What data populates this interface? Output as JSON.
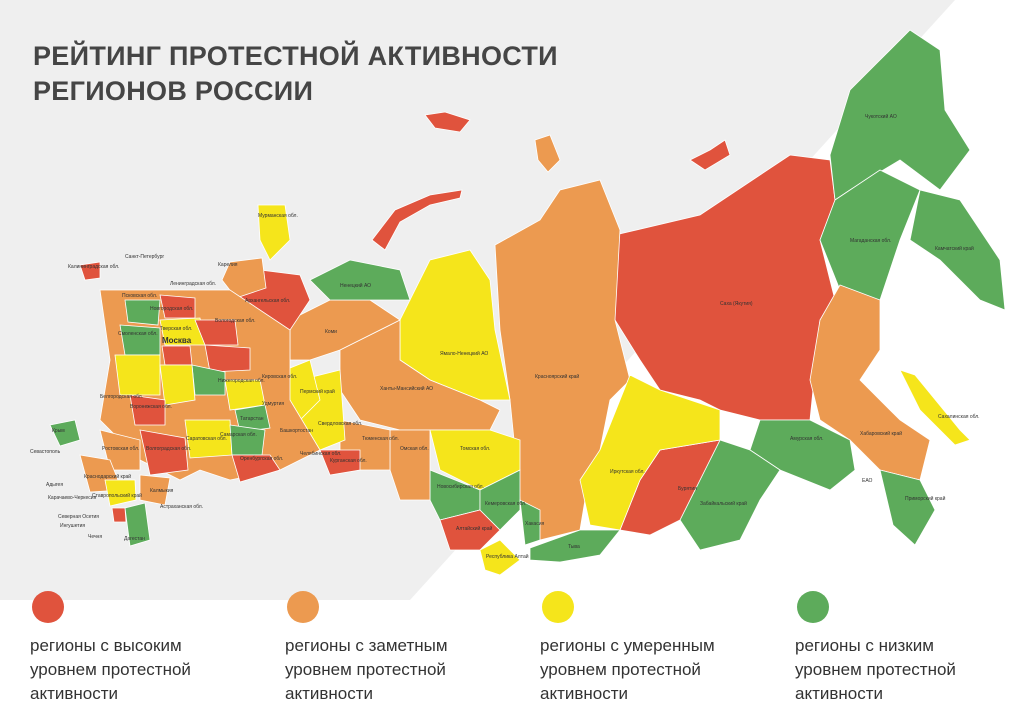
{
  "title": [
    "РЕЙТИНГ ПРОТЕСТНОЙ АКТИВНОСТИ",
    "РЕГИОНОВ РОССИИ"
  ],
  "legend": [
    {
      "color": "#e0533d",
      "lines": [
        "регионы с высоким",
        "уровнем протестной",
        "активности"
      ]
    },
    {
      "color": "#ec9a50",
      "lines": [
        "регионы с заметным",
        "уровнем протестной",
        "активности"
      ]
    },
    {
      "color": "#f5e51b",
      "lines": [
        "регионы с умеренным",
        "уровнем протестной",
        "активности"
      ]
    },
    {
      "color": "#5dab5b",
      "lines": [
        "регионы с низким",
        "уровнем протестной",
        "активности"
      ]
    }
  ],
  "regions": [
    {
      "label": "Москва"
    },
    {
      "label": "Мурманская обл."
    },
    {
      "label": "Карелия"
    },
    {
      "label": "Санкт-Петербург"
    },
    {
      "label": "Калининградская обл."
    },
    {
      "label": "Ленинградская обл."
    },
    {
      "label": "Псковская обл."
    },
    {
      "label": "Новгородская обл."
    },
    {
      "label": "Архангельская обл."
    },
    {
      "label": "Вологодская обл."
    },
    {
      "label": "Ненецкий АО"
    },
    {
      "label": "Коми"
    },
    {
      "label": "Ямало-Ненецкий АО"
    },
    {
      "label": "Ханты-Мансийский АО"
    },
    {
      "label": "Красноярский край"
    },
    {
      "label": "Саха (Якутия)"
    },
    {
      "label": "Чукотский АО"
    },
    {
      "label": "Магаданская обл."
    },
    {
      "label": "Камчатский край"
    },
    {
      "label": "Сахалинская обл."
    },
    {
      "label": "Хабаровский край"
    },
    {
      "label": "Амурская обл."
    },
    {
      "label": "ЕАО"
    },
    {
      "label": "Приморский край"
    },
    {
      "label": "Забайкальский край"
    },
    {
      "label": "Бурятия"
    },
    {
      "label": "Иркутская обл."
    },
    {
      "label": "Тыва"
    },
    {
      "label": "Хакасия"
    },
    {
      "label": "Республика Алтай"
    },
    {
      "label": "Алтайский край"
    },
    {
      "label": "Кемеровская обл."
    },
    {
      "label": "Новосибирская обл."
    },
    {
      "label": "Томская обл."
    },
    {
      "label": "Омская обл."
    },
    {
      "label": "Тюменская обл."
    },
    {
      "label": "Курганская обл."
    },
    {
      "label": "Челябинская обл."
    },
    {
      "label": "Свердловская обл."
    },
    {
      "label": "Пермский край"
    },
    {
      "label": "Башкортостан"
    },
    {
      "label": "Оренбургская обл."
    },
    {
      "label": "Удмуртия"
    },
    {
      "label": "Татарстан"
    },
    {
      "label": "Самарская обл."
    },
    {
      "label": "Саратовская обл."
    },
    {
      "label": "Волгоградская обл."
    },
    {
      "label": "Ростовская обл."
    },
    {
      "label": "Краснодарский край"
    },
    {
      "label": "Крым"
    },
    {
      "label": "Севастополь"
    },
    {
      "label": "Адыгея"
    },
    {
      "label": "Карачаево-Черкесия"
    },
    {
      "label": "Ставропольский край"
    },
    {
      "label": "Северная Осетия"
    },
    {
      "label": "Ингушетия"
    },
    {
      "label": "Чечня"
    },
    {
      "label": "Дагестан"
    },
    {
      "label": "Калмыкия"
    },
    {
      "label": "Астраханская обл."
    },
    {
      "label": "Тверская обл."
    },
    {
      "label": "Смоленская обл."
    },
    {
      "label": "Белгородская обл."
    },
    {
      "label": "Воронежская обл."
    },
    {
      "label": "Кировская обл."
    },
    {
      "label": "Нижегородская обл."
    }
  ]
}
